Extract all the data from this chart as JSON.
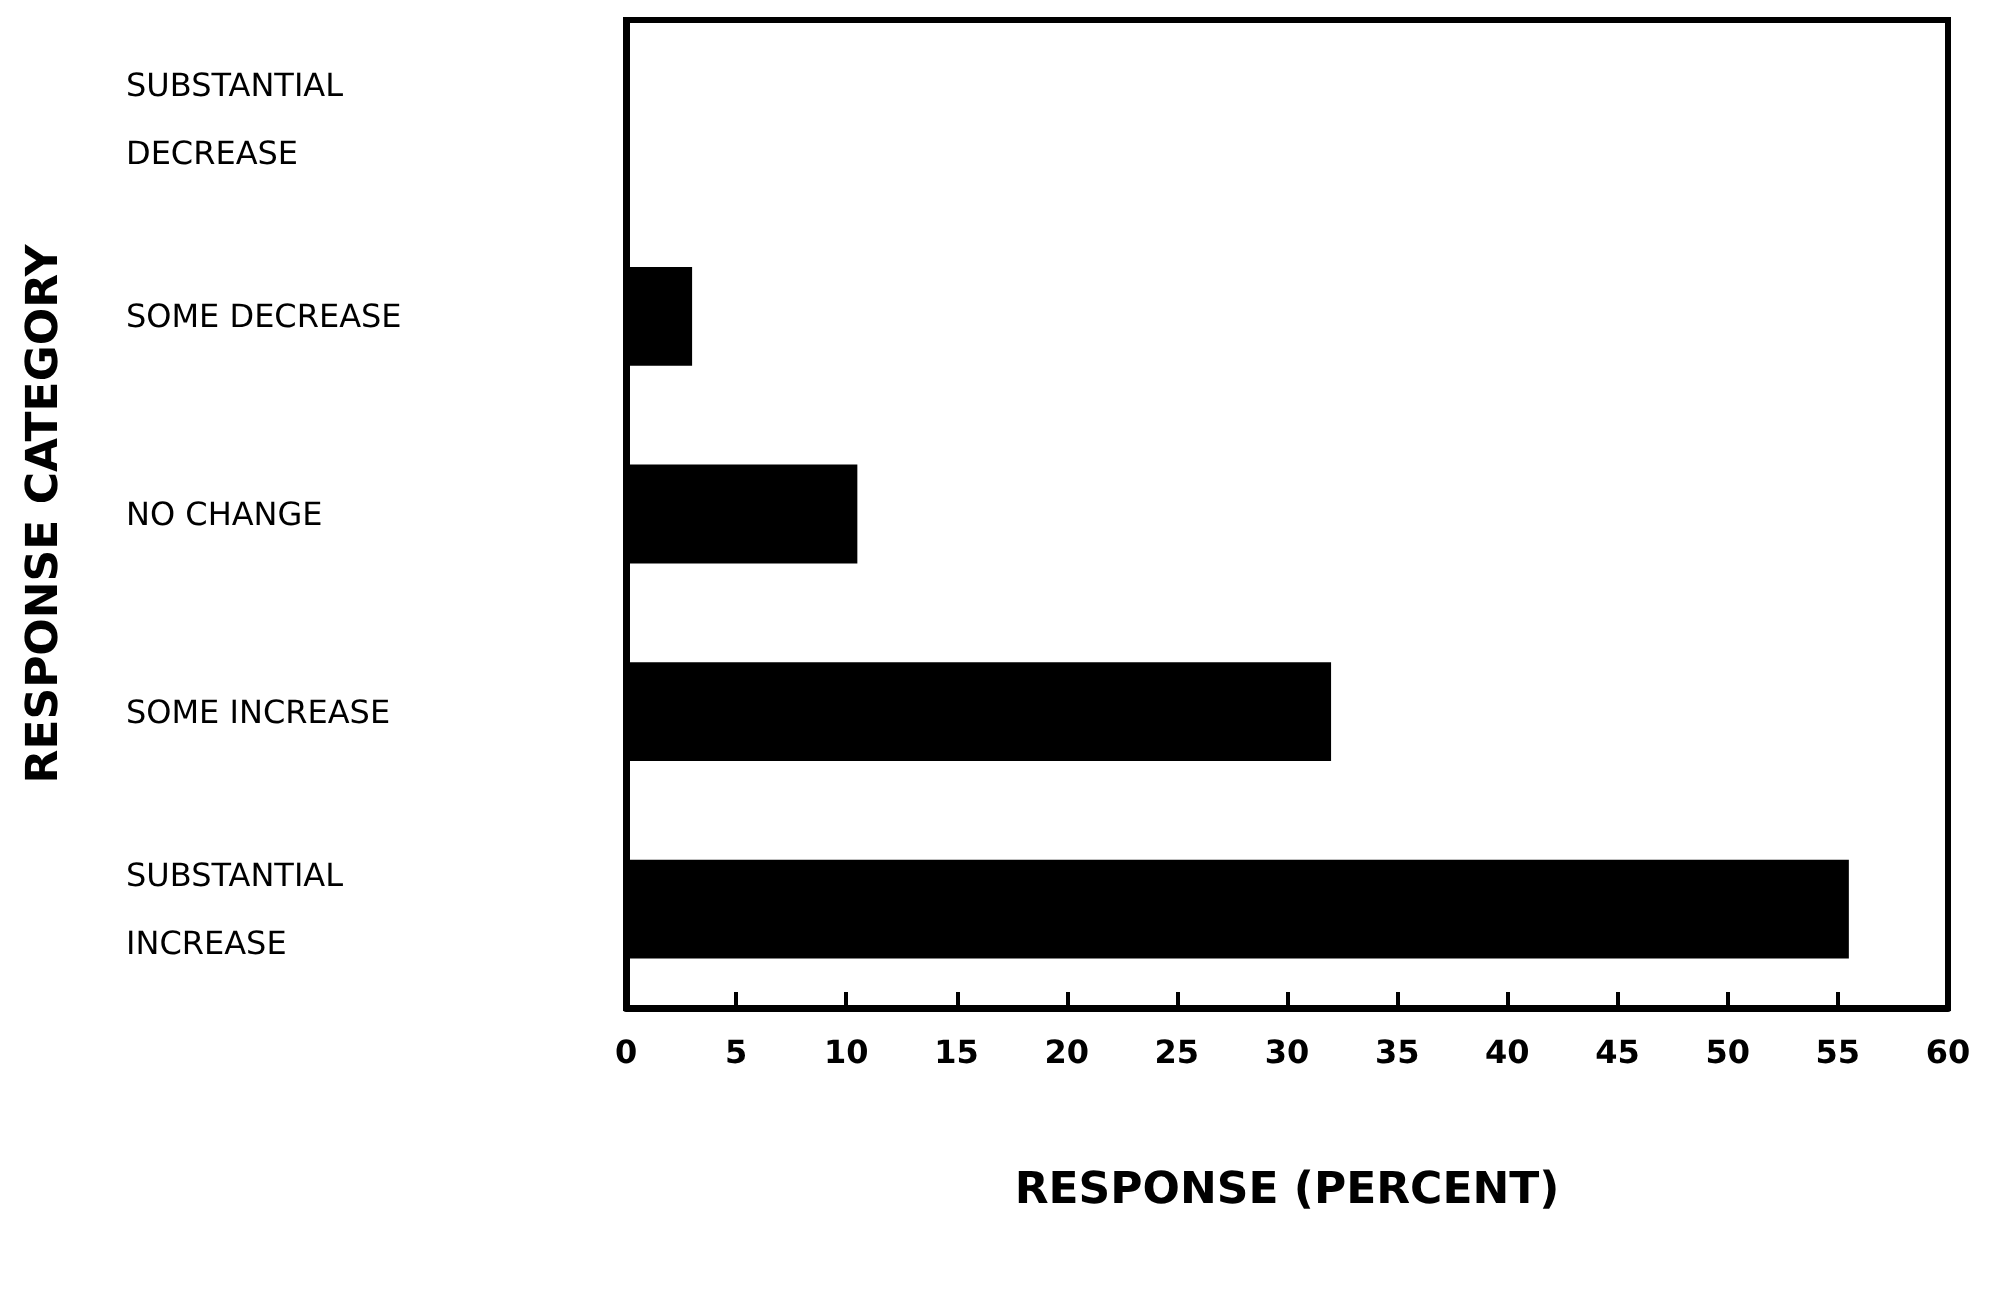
{
  "chart_data": {
    "type": "bar",
    "orientation": "horizontal",
    "xlabel": "RESPONSE (PERCENT)",
    "ylabel": "RESPONSE CATEGORY",
    "categories": [
      "SUBSTANTIAL DECREASE",
      "SOME DECREASE",
      "NO CHANGE",
      "SOME INCREASE",
      "SUBSTANTIAL INCREASE"
    ],
    "values": [
      0,
      3,
      10.5,
      32,
      55.5
    ],
    "color": "#000000",
    "xlim": [
      0,
      60
    ],
    "xticks": [
      0,
      5,
      10,
      15,
      20,
      25,
      30,
      35,
      40,
      45,
      50,
      55,
      60
    ],
    "grid": false
  }
}
